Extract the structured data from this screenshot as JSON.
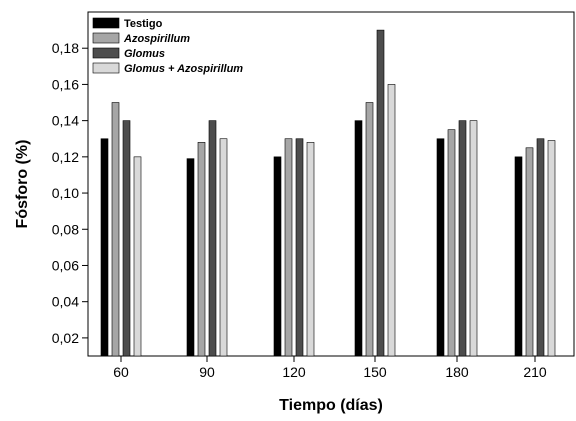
{
  "chart_data": {
    "type": "bar",
    "categories": [
      "60",
      "90",
      "120",
      "150",
      "180",
      "210"
    ],
    "series": [
      {
        "name": "Testigo",
        "italic": false,
        "color": "#000000",
        "values": [
          0.13,
          0.119,
          0.12,
          0.14,
          0.13,
          0.12
        ]
      },
      {
        "name": "Azospirillum",
        "italic": true,
        "color": "#a6a6a6",
        "values": [
          0.15,
          0.128,
          0.13,
          0.15,
          0.135,
          0.125
        ]
      },
      {
        "name": "Glomus",
        "italic": true,
        "color": "#4d4d4d",
        "values": [
          0.14,
          0.14,
          0.13,
          0.19,
          0.14,
          0.13
        ]
      },
      {
        "name": "Glomus + Azospirillum",
        "italic": true,
        "color": "#d9d9d9",
        "values": [
          0.12,
          0.13,
          0.128,
          0.16,
          0.14,
          0.129
        ]
      }
    ],
    "xlabel": "Tiempo (días)",
    "ylabel": "Fósforo (%)",
    "ylim": [
      0.01,
      0.2
    ],
    "yticks": [
      0.02,
      0.04,
      0.06,
      0.08,
      0.1,
      0.12,
      0.14,
      0.16,
      0.18
    ],
    "ytick_labels": [
      "0,02",
      "0,04",
      "0,06",
      "0,08",
      "0,10",
      "0,12",
      "0,14",
      "0,16",
      "0,18"
    ],
    "grid": false,
    "legend_position": "top-left"
  }
}
